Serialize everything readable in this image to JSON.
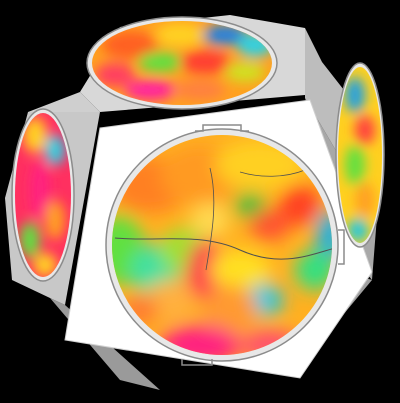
{
  "scene": {
    "subject": "dodecahedron",
    "background_color": "#000000",
    "face_colors": {
      "front": "#ffffff",
      "side_light": "#e4e4e4",
      "side_mid": "#c4c4c4",
      "side_dark": "#9a9a9a",
      "wafer_rim": "#8c8c8c",
      "edge": "#b0b0b0"
    },
    "colormap": [
      "#1040d0",
      "#10c8e0",
      "#30e060",
      "#f0f020",
      "#ffa020",
      "#ff3030",
      "#ff2080",
      "#d020d0"
    ]
  }
}
